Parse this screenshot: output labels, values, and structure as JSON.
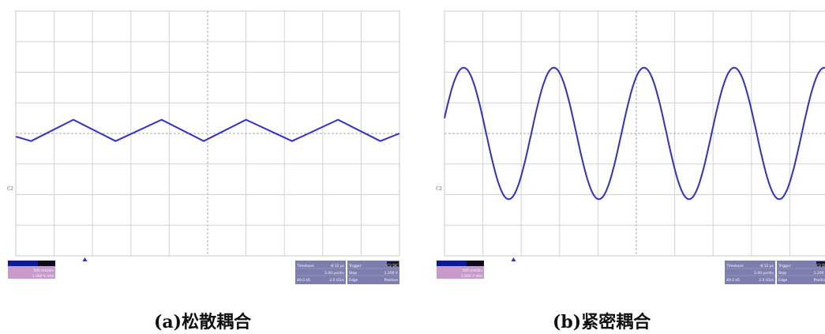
{
  "colors": {
    "trace": "#2f2fd0",
    "grid": "#d2d2d2",
    "center_grid": "#a8a8a8",
    "panel_border": "#c8c8c8",
    "channel_bar": "#0a1a9a",
    "channel_bar_dark": "#0c0c18",
    "channel_info": "#c79acb",
    "timebase_box": "#7d7db0"
  },
  "captions": {
    "a": "(a)松散耦合",
    "b": "(b)紧密耦合"
  },
  "scope": {
    "channel_marker": "C2",
    "trigger_icon": "triangle-icon",
    "channel_info": [
      "500 mV/div",
      "1.000 V ofst"
    ],
    "timebase": {
      "rows": [
        [
          "Timebase",
          "-8.32 µs"
        ],
        [
          "",
          "2.00 µs/div"
        ],
        [
          "40.0 kS",
          "2.0 GS/s"
        ]
      ],
      "trigger_rows": [
        [
          "Trigger",
          "C2 DC"
        ],
        [
          "Stop",
          "1.200 V"
        ],
        [
          "Edge",
          "Positive"
        ]
      ]
    }
  },
  "chart_data": [
    {
      "type": "line",
      "panel": "a",
      "grid": true,
      "grid_divisions": [
        10,
        8
      ],
      "xlim": [
        0,
        10
      ],
      "ylim": [
        -4,
        4
      ],
      "series": [
        {
          "x": [
            0,
            0.4,
            1.5,
            2.6,
            3.8,
            4.9,
            6.0,
            7.2,
            8.4,
            9.5,
            10
          ],
          "y": [
            -0.1,
            -0.25,
            0.45,
            -0.25,
            0.45,
            -0.25,
            0.45,
            -0.25,
            0.45,
            -0.25,
            0.0
          ]
        }
      ]
    },
    {
      "type": "line",
      "panel": "b",
      "grid": true,
      "grid_divisions": [
        10,
        8
      ],
      "xlim": [
        0,
        10
      ],
      "ylim": [
        -4,
        4
      ],
      "series": [
        {
          "waveform": "sine",
          "amplitude_div": 2.15,
          "period_div": 2.35,
          "first_peak_x": 0.5
        }
      ]
    }
  ]
}
